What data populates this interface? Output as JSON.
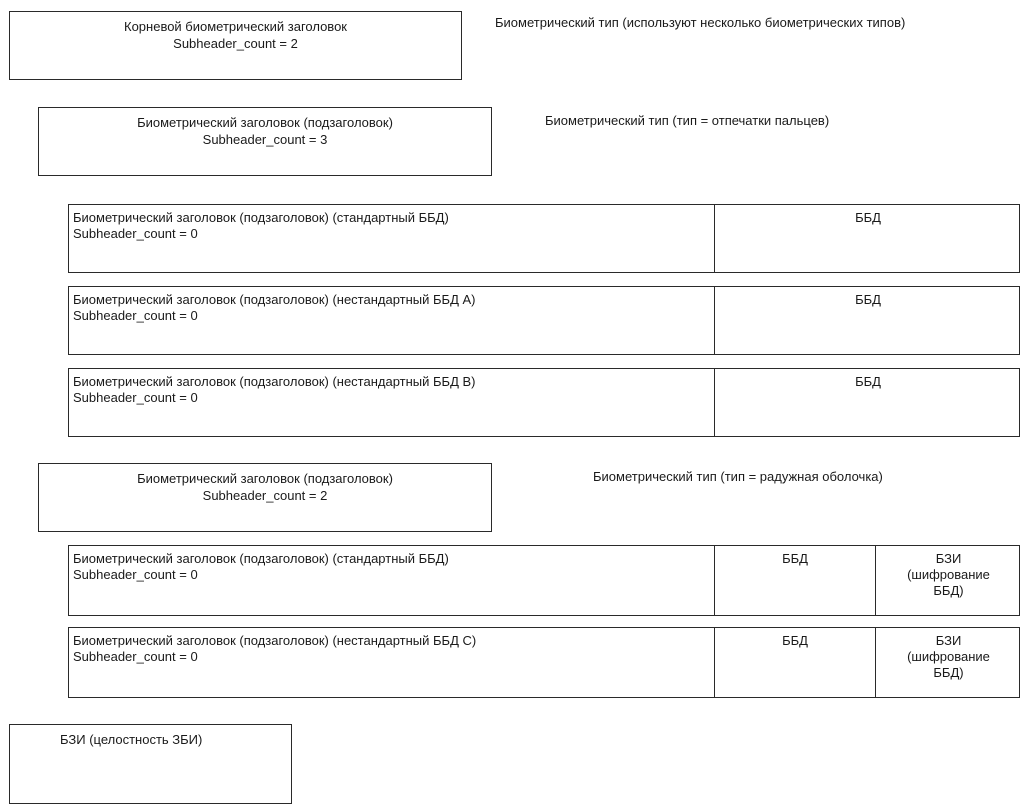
{
  "root": {
    "title": "Корневой биометрический заголовок",
    "count": "Subheader_count = 2",
    "label": "Биометрический тип (используют несколько биометрических типов)"
  },
  "group1": {
    "title": "Биометрический заголовок (подзаголовок)",
    "count": "Subheader_count = 3",
    "label": "Биометрический тип (тип = отпечатки пальцев)",
    "rows": [
      {
        "title": "Биометрический заголовок (подзаголовок) (стандартный ББД)",
        "count": "Subheader_count = 0",
        "bdb": "ББД"
      },
      {
        "title": "Биометрический заголовок (подзаголовок) (нестандартный ББД А)",
        "count": "Subheader_count = 0",
        "bdb": "ББД"
      },
      {
        "title": "Биометрический заголовок (подзаголовок) (нестандартный ББД В)",
        "count": "Subheader_count = 0",
        "bdb": "ББД"
      }
    ]
  },
  "group2": {
    "title": "Биометрический заголовок (подзаголовок)",
    "count": "Subheader_count = 2",
    "label": "Биометрический тип (тип = радужная оболочка)",
    "rows": [
      {
        "title": "Биометрический заголовок (подзаголовок) (стандартный ББД)",
        "count": "Subheader_count = 0",
        "bdb": "ББД",
        "sb_1": "БЗИ",
        "sb_2": "(шифрование",
        "sb_3": "ББД)"
      },
      {
        "title": "Биометрический заголовок (подзаголовок) (нестандартный ББД С)",
        "count": "Subheader_count = 0",
        "bdb": "ББД",
        "sb_1": "БЗИ",
        "sb_2": "(шифрование",
        "sb_3": "ББД)"
      }
    ]
  },
  "footer": {
    "title": "БЗИ (целостность ЗБИ)"
  }
}
